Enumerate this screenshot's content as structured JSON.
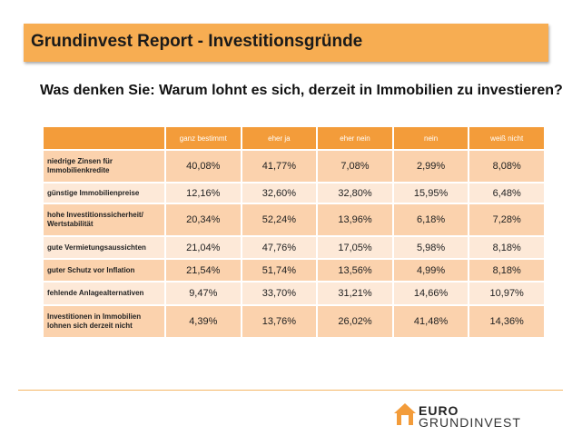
{
  "header": {
    "title": "Grundinvest Report - Investitionsgründe"
  },
  "question": "Was denken Sie: Warum lohnt es sich, derzeit in Immobilien zu investieren?",
  "chart_data": {
    "type": "table",
    "columns": [
      "ganz bestimmt",
      "eher ja",
      "eher nein",
      "nein",
      "weiß nicht"
    ],
    "rows": [
      {
        "label": "niedrige Zinsen für Immobilienkredite",
        "values": [
          "40,08%",
          "41,77%",
          "7,08%",
          "2,99%",
          "8,08%"
        ]
      },
      {
        "label": "günstige Immobilienpreise",
        "values": [
          "12,16%",
          "32,60%",
          "32,80%",
          "15,95%",
          "6,48%"
        ]
      },
      {
        "label": "hohe Investitionssicherheit/ Wertstabilität",
        "values": [
          "20,34%",
          "52,24%",
          "13,96%",
          "6,18%",
          "7,28%"
        ]
      },
      {
        "label": "gute Vermietungsaussichten",
        "values": [
          "21,04%",
          "47,76%",
          "17,05%",
          "5,98%",
          "8,18%"
        ]
      },
      {
        "label": "guter Schutz vor Inflation",
        "values": [
          "21,54%",
          "51,74%",
          "13,56%",
          "4,99%",
          "8,18%"
        ]
      },
      {
        "label": "fehlende Anlagealternativen",
        "values": [
          "9,47%",
          "33,70%",
          "31,21%",
          "14,66%",
          "10,97%"
        ]
      },
      {
        "label": "Investitionen in Immobilien lohnen sich derzeit nicht",
        "values": [
          "4,39%",
          "13,76%",
          "26,02%",
          "41,48%",
          "14,36%"
        ]
      }
    ]
  },
  "logo": {
    "line1": "EURO",
    "line2": "GRUNDINVEST"
  },
  "colors": {
    "title_bar": "#f7ad52",
    "table_header": "#f39c3a",
    "row_dark": "#fbd2ad",
    "row_light": "#fde9d8",
    "rule": "#f5b666"
  }
}
